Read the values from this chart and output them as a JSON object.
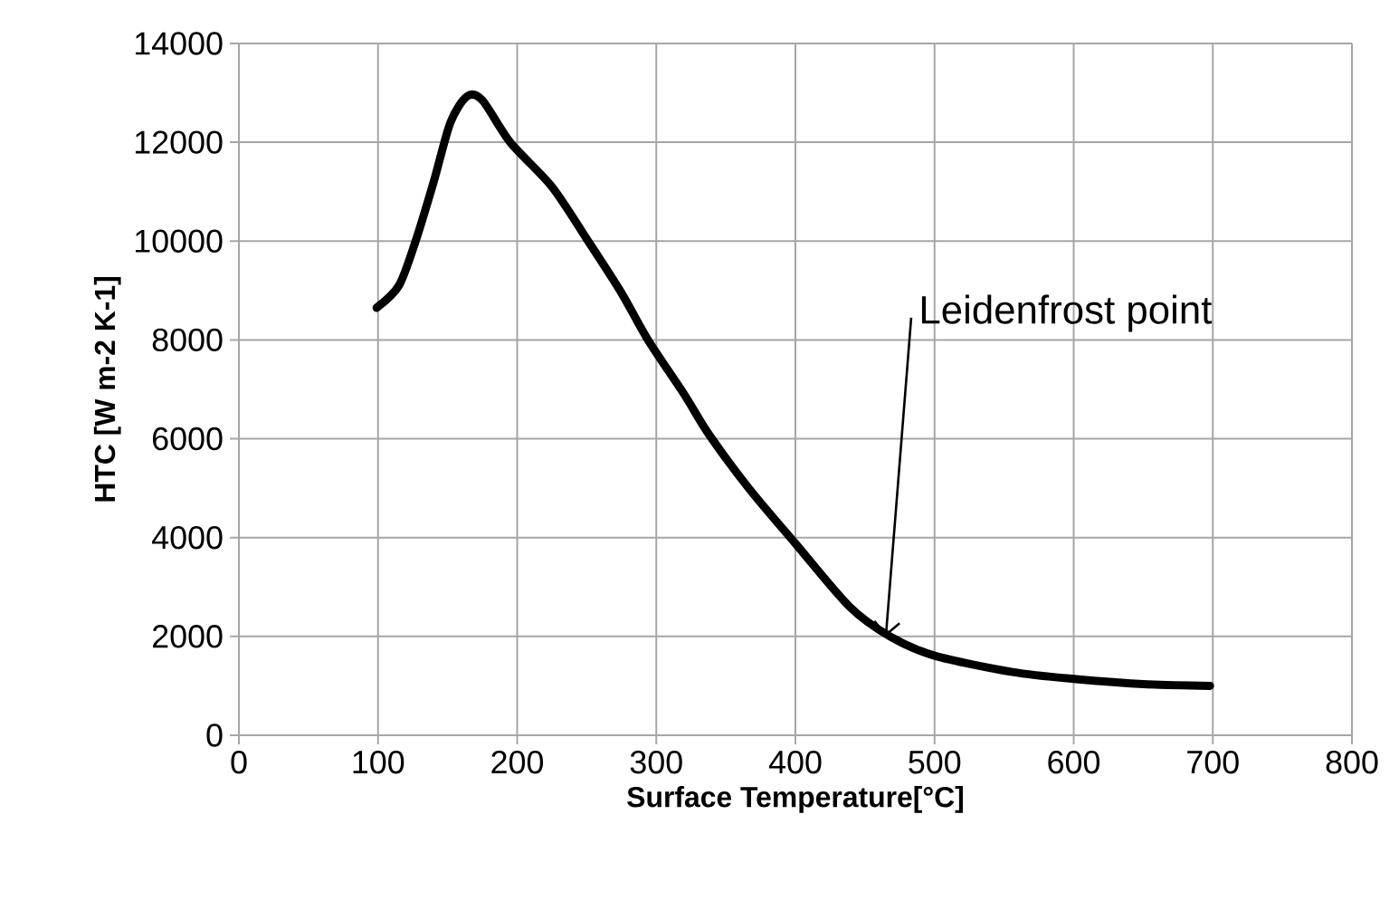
{
  "chart_data": {
    "type": "line",
    "xlabel": "Surface Temperature[°C]",
    "ylabel": "HTC [W m-2 K-1]",
    "x": [
      99,
      115,
      127,
      140,
      152,
      164,
      175,
      195,
      225,
      251,
      275,
      294,
      320,
      338,
      367,
      400,
      439,
      468,
      500,
      556,
      600,
      653,
      698
    ],
    "series": [
      {
        "color": "#000000",
        "values": [
          8650,
          9100,
          10000,
          11200,
          12400,
          12930,
          12850,
          12000,
          11100,
          10000,
          8950,
          8000,
          6900,
          6080,
          4980,
          3880,
          2600,
          2000,
          1610,
          1280,
          1140,
          1030,
          1000
        ]
      }
    ],
    "xlim": [
      0,
      800
    ],
    "ylim": [
      0,
      14000
    ],
    "xticks": [
      0,
      100,
      200,
      300,
      400,
      500,
      600,
      700,
      800
    ],
    "yticks": [
      0,
      2000,
      4000,
      6000,
      8000,
      10000,
      12000,
      14000
    ],
    "annotations": [
      {
        "text": "Leidenfrost point",
        "x": 465,
        "y": 2000
      }
    ],
    "grid": true,
    "legend": false,
    "marker": "none",
    "line_style": "solid"
  }
}
